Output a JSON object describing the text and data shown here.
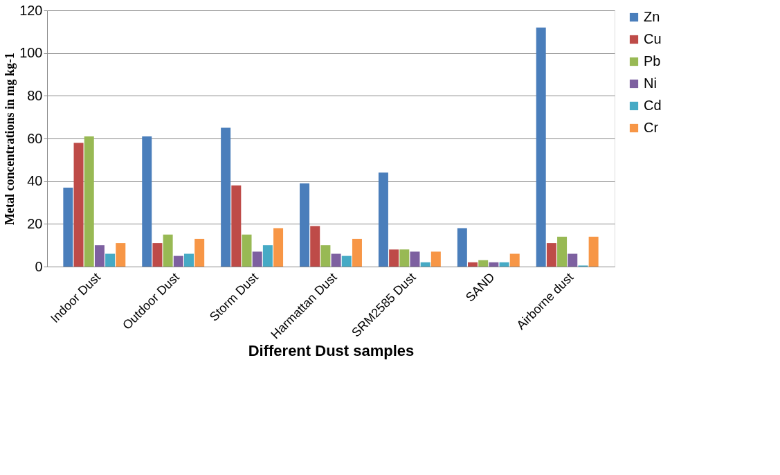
{
  "chart_data": {
    "type": "bar",
    "xlabel": "Different Dust samples",
    "ylabel": "Metal concentrations in mg kg-1",
    "categories": [
      "Indoor Dust",
      "Outdoor Dust",
      "Storm Dust",
      "Harmattan Dust",
      "SRM2585 Dust",
      "SAND",
      "Airborne dust"
    ],
    "series": [
      {
        "name": "Zn",
        "color": "#4a7ebb",
        "values": [
          37,
          61,
          65,
          39,
          44,
          18,
          112
        ]
      },
      {
        "name": "Cu",
        "color": "#be4b48",
        "values": [
          58,
          11,
          38,
          19,
          8,
          2,
          11
        ]
      },
      {
        "name": "Pb",
        "color": "#98b954",
        "values": [
          61,
          15,
          15,
          10,
          8,
          3,
          14
        ]
      },
      {
        "name": "Ni",
        "color": "#7d60a0",
        "values": [
          10,
          5,
          7,
          6,
          7,
          2,
          6
        ]
      },
      {
        "name": "Cd",
        "color": "#46aac5",
        "values": [
          6,
          6,
          10,
          5,
          2,
          2,
          0.5
        ]
      },
      {
        "name": "Cr",
        "color": "#f79646",
        "values": [
          11,
          13,
          18,
          13,
          7,
          6,
          14
        ]
      }
    ],
    "ylim": [
      0,
      120
    ],
    "yticks": [
      0,
      20,
      40,
      60,
      80,
      100,
      120
    ],
    "grid": "y",
    "legend": "right"
  }
}
